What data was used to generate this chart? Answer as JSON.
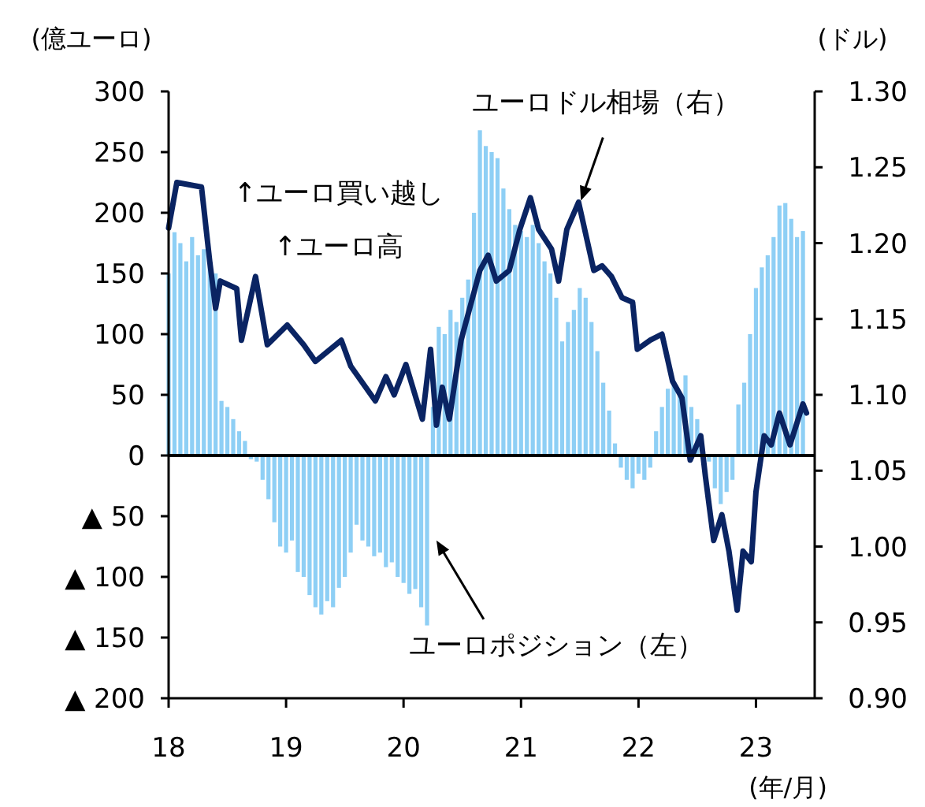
{
  "chart_data": {
    "type": "bar",
    "ylabel": "(億ユーロ)",
    "y2label": "(ドル)",
    "xlabel": "(年/月)",
    "xlim": [
      18,
      23.5
    ],
    "xticks": [
      18,
      19,
      20,
      21,
      22,
      23
    ],
    "ylim": [
      -200,
      300
    ],
    "yticks": [
      {
        "value": -200,
        "label": "▲ 200"
      },
      {
        "value": -150,
        "label": "▲ 150"
      },
      {
        "value": -100,
        "label": "▲ 100"
      },
      {
        "value": -50,
        "label": "▲ 50"
      },
      0,
      50,
      100,
      150,
      200,
      250,
      300
    ],
    "y2lim": [
      0.9,
      1.3
    ],
    "y2ticks": [
      {
        "value": 0.9,
        "label": "0.90"
      },
      {
        "value": 0.95,
        "label": "0.95"
      },
      {
        "value": 1.0,
        "label": "1.00"
      },
      {
        "value": 1.05,
        "label": "1.05"
      },
      {
        "value": 1.1,
        "label": "1.10"
      },
      {
        "value": 1.15,
        "label": "1.15"
      },
      {
        "value": 1.2,
        "label": "1.20"
      },
      {
        "value": 1.25,
        "label": "1.25"
      },
      {
        "value": 1.3,
        "label": "1.30"
      }
    ],
    "ref_lines": [
      {
        "axis": "y",
        "value": 0,
        "color": "#000000"
      }
    ],
    "grid": false,
    "annotations": [
      "↑ユーロ買い越し",
      "↑ユーロ高",
      {
        "text": "ユーロドル相場（右）",
        "x": 21.51,
        "y": 210
      },
      {
        "text": "ユーロポジション（左）",
        "x": 20.28,
        "y": -70
      }
    ],
    "series": [
      {
        "color": "#8ecff5",
        "x": [
          18.0,
          18.05,
          18.1,
          18.15,
          18.2,
          18.25,
          18.3,
          18.35,
          18.4,
          18.45,
          18.5,
          18.55,
          18.6,
          18.65,
          18.7,
          18.75,
          18.8,
          18.85,
          18.9,
          18.95,
          19.0,
          19.05,
          19.1,
          19.15,
          19.2,
          19.25,
          19.3,
          19.35,
          19.4,
          19.45,
          19.5,
          19.55,
          19.6,
          19.65,
          19.7,
          19.75,
          19.8,
          19.85,
          19.9,
          19.95,
          20.0,
          20.05,
          20.1,
          20.15,
          20.2,
          20.25,
          20.3,
          20.35,
          20.4,
          20.45,
          20.5,
          20.55,
          20.6,
          20.65,
          20.7,
          20.75,
          20.8,
          20.85,
          20.9,
          20.95,
          21.0,
          21.05,
          21.1,
          21.15,
          21.2,
          21.25,
          21.3,
          21.35,
          21.4,
          21.45,
          21.5,
          21.55,
          21.6,
          21.65,
          21.7,
          21.75,
          21.8,
          21.85,
          21.9,
          21.95,
          22.0,
          22.05,
          22.1,
          22.15,
          22.2,
          22.25,
          22.3,
          22.35,
          22.4,
          22.45,
          22.5,
          22.55,
          22.6,
          22.65,
          22.7,
          22.75,
          22.8,
          22.85,
          22.9,
          22.95,
          23.0,
          23.05,
          23.1,
          23.15,
          23.2,
          23.25,
          23.3,
          23.35,
          23.4
        ],
        "values": [
          150,
          184,
          175,
          160,
          180,
          165,
          170,
          160,
          150,
          45,
          40,
          30,
          20,
          12,
          -3,
          -5,
          -20,
          -36,
          -55,
          -75,
          -80,
          -70,
          -96,
          -100,
          -115,
          -125,
          -131,
          -120,
          -125,
          -109,
          -100,
          -80,
          -57,
          -70,
          -75,
          -83,
          -80,
          -92,
          -88,
          -100,
          -105,
          -114,
          -110,
          -125,
          -140,
          40,
          106,
          100,
          120,
          110,
          130,
          145,
          200,
          268,
          255,
          250,
          245,
          220,
          203,
          190,
          185,
          180,
          190,
          175,
          160,
          150,
          130,
          94,
          110,
          120,
          138,
          130,
          110,
          86,
          60,
          37,
          10,
          -10,
          -20,
          -27,
          -15,
          -20,
          -10,
          20,
          40,
          55,
          60,
          50,
          66,
          40,
          30,
          null,
          -5,
          -27,
          -40,
          -30,
          -20,
          42,
          60,
          100,
          138,
          155,
          165,
          180,
          206,
          208,
          195,
          180,
          185
        ]
      },
      {
        "type": "line",
        "axis": "y2",
        "color": "#0a2463",
        "x": [
          18.0,
          18.07,
          18.28,
          18.35,
          18.4,
          18.44,
          18.58,
          18.62,
          18.74,
          18.84,
          19.01,
          19.15,
          19.25,
          19.47,
          19.55,
          19.76,
          19.85,
          19.92,
          20.02,
          20.16,
          20.23,
          20.28,
          20.33,
          20.39,
          20.49,
          20.65,
          20.72,
          20.79,
          20.9,
          20.99,
          21.08,
          21.15,
          21.26,
          21.32,
          21.39,
          21.49,
          21.62,
          21.69,
          21.77,
          21.86,
          21.95,
          21.99,
          22.1,
          22.2,
          22.29,
          22.37,
          22.44,
          22.53,
          22.57,
          22.64,
          22.71,
          22.77,
          22.84,
          22.89,
          22.96,
          23.0,
          23.07,
          23.13,
          23.2,
          23.29,
          23.4,
          23.43
        ],
        "values": [
          1.21,
          1.24,
          1.237,
          1.188,
          1.157,
          1.175,
          1.17,
          1.136,
          1.178,
          1.133,
          1.146,
          1.133,
          1.122,
          1.136,
          1.119,
          1.096,
          1.112,
          1.1,
          1.12,
          1.084,
          1.13,
          1.08,
          1.105,
          1.084,
          1.136,
          1.182,
          1.192,
          1.175,
          1.182,
          1.209,
          1.23,
          1.209,
          1.196,
          1.175,
          1.209,
          1.227,
          1.182,
          1.185,
          1.178,
          1.164,
          1.161,
          1.13,
          1.136,
          1.14,
          1.109,
          1.098,
          1.057,
          1.073,
          1.046,
          1.004,
          1.021,
          0.997,
          0.958,
          0.997,
          0.99,
          1.036,
          1.073,
          1.067,
          1.088,
          1.067,
          1.094,
          1.088
        ]
      }
    ]
  }
}
